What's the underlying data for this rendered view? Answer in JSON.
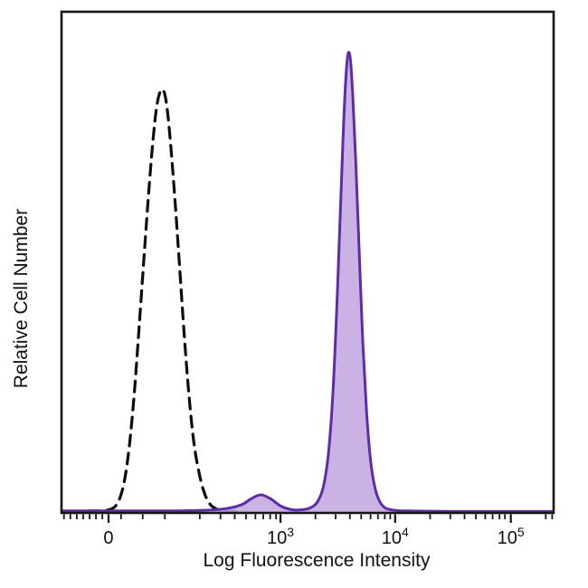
{
  "figure": {
    "background": "#ffffff",
    "border_color": "#161616"
  },
  "chart_data": {
    "type": "area",
    "subtype": "flow-cytometry-histogram",
    "title": "",
    "xlabel": "Log Fluorescence Intensity",
    "ylabel": "Relative Cell Number",
    "x_scale": "biexponential (linear around 0, log decades 10^3 to 10^5)",
    "grid": "off",
    "legend": "none",
    "y_axis": {
      "ticks": "none",
      "range_normalized": [
        0,
        1
      ]
    },
    "x_axis": {
      "major_ticks": [
        {
          "base": "0",
          "exp": "",
          "frac": 0.0955
        },
        {
          "base": "10",
          "exp": "3",
          "frac": 0.445
        },
        {
          "base": "10",
          "exp": "4",
          "frac": 0.678
        },
        {
          "base": "10",
          "exp": "5",
          "frac": 0.913
        }
      ],
      "minor_ticks": [
        0.005,
        0.018,
        0.031,
        0.044,
        0.057,
        0.07,
        0.083,
        0.121,
        0.165,
        0.21,
        0.281,
        0.323,
        0.352,
        0.375,
        0.394,
        0.41,
        0.424,
        0.436,
        0.516,
        0.557,
        0.586,
        0.609,
        0.628,
        0.643,
        0.657,
        0.668,
        0.749,
        0.79,
        0.819,
        0.842,
        0.861,
        0.876,
        0.89,
        0.901,
        0.984,
        0.997
      ]
    },
    "series": [
      {
        "id": "dashed-control",
        "name": "dashed open histogram (control)",
        "line": "dashed",
        "color": "#0d0d0d",
        "stroke_width": 3.2,
        "fill": "none",
        "fill_opacity": 0,
        "peak_x_frac": 0.204,
        "peak_height": 0.845,
        "points": [
          [
            0.055,
            0.004
          ],
          [
            0.075,
            0.004
          ],
          [
            0.095,
            0.006
          ],
          [
            0.108,
            0.012
          ],
          [
            0.118,
            0.028
          ],
          [
            0.128,
            0.065
          ],
          [
            0.138,
            0.135
          ],
          [
            0.148,
            0.24
          ],
          [
            0.158,
            0.375
          ],
          [
            0.168,
            0.515
          ],
          [
            0.178,
            0.65
          ],
          [
            0.187,
            0.755
          ],
          [
            0.195,
            0.82
          ],
          [
            0.204,
            0.845
          ],
          [
            0.212,
            0.825
          ],
          [
            0.22,
            0.755
          ],
          [
            0.229,
            0.645
          ],
          [
            0.239,
            0.505
          ],
          [
            0.249,
            0.36
          ],
          [
            0.259,
            0.235
          ],
          [
            0.269,
            0.14
          ],
          [
            0.28,
            0.078
          ],
          [
            0.291,
            0.038
          ],
          [
            0.303,
            0.016
          ],
          [
            0.317,
            0.007
          ],
          [
            0.335,
            0.004
          ],
          [
            0.36,
            0.003
          ]
        ]
      },
      {
        "id": "purple-sample",
        "name": "purple filled histogram (stained sample)",
        "line": "solid",
        "color": "#5e2ca6",
        "stroke_width": 3.0,
        "fill": "#c4abe1",
        "fill_opacity": 0.9,
        "peak_x_frac": 0.582,
        "peak_height": 0.915,
        "small_bump": {
          "x_frac": 0.405,
          "height": 0.036
        },
        "points": [
          [
            0.0,
            0.004
          ],
          [
            0.1,
            0.004
          ],
          [
            0.2,
            0.004
          ],
          [
            0.28,
            0.005
          ],
          [
            0.33,
            0.008
          ],
          [
            0.365,
            0.016
          ],
          [
            0.385,
            0.028
          ],
          [
            0.405,
            0.036
          ],
          [
            0.425,
            0.028
          ],
          [
            0.445,
            0.014
          ],
          [
            0.465,
            0.007
          ],
          [
            0.485,
            0.006
          ],
          [
            0.505,
            0.01
          ],
          [
            0.52,
            0.022
          ],
          [
            0.532,
            0.052
          ],
          [
            0.542,
            0.115
          ],
          [
            0.551,
            0.23
          ],
          [
            0.559,
            0.4
          ],
          [
            0.566,
            0.585
          ],
          [
            0.572,
            0.745
          ],
          [
            0.577,
            0.855
          ],
          [
            0.582,
            0.915
          ],
          [
            0.587,
            0.905
          ],
          [
            0.592,
            0.83
          ],
          [
            0.598,
            0.7
          ],
          [
            0.605,
            0.52
          ],
          [
            0.612,
            0.345
          ],
          [
            0.62,
            0.2
          ],
          [
            0.628,
            0.105
          ],
          [
            0.637,
            0.05
          ],
          [
            0.647,
            0.022
          ],
          [
            0.658,
            0.01
          ],
          [
            0.672,
            0.006
          ],
          [
            0.7,
            0.004
          ],
          [
            0.8,
            0.003
          ],
          [
            0.9,
            0.003
          ],
          [
            1.0,
            0.003
          ]
        ]
      }
    ]
  }
}
